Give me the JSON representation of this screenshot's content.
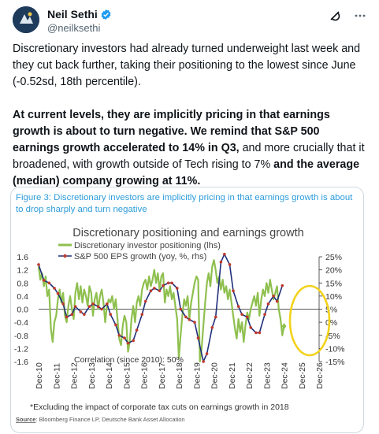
{
  "author": {
    "display_name": "Neil Sethi",
    "handle": "@neilksethi",
    "avatar_icon": "avatar-logo-icon",
    "verified_icon": "verified-badge-icon",
    "verified_color": "#1d9bf0"
  },
  "actions": {
    "grok_icon": "grok-icon",
    "more_icon": "more-dots-icon"
  },
  "tweet": {
    "para1": "Discretionary investors had already turned underweight last week and they cut back further, taking their positioning to the lowest since June (-0.52sd, 18th percentile).",
    "para2_seg1": "At current levels, they are implicitly pricing in that earnings growth is about to turn negative. We remind that S&P 500 earnings growth accelerated to 14% in Q3,",
    "para2_seg2": " and more crucially that it broadened, with growth outside of Tech rising to 7%",
    "para2_seg3": " and the average (median) company growing at 11%."
  },
  "figure": {
    "caption": "Figure 3: Discretionary investors are implicitly pricing in that earnings growth is about to drop sharply and turn negative",
    "footnote": "*Excluding the impact of corporate tax cuts on earnings growth in 2018",
    "source_label": "Source",
    "source_text": ": Bloomberg Finance LP, Deutsche Bank Asset Allocation",
    "correlation": "Correlation (since 2010): 50%",
    "highlight_color": "#f2d21b"
  },
  "chart_data": {
    "type": "line",
    "title": "Discretionary positioning and earnings growth",
    "x_tick_labels": [
      "Dec-10",
      "Dec-11",
      "Dec-12",
      "Dec-13",
      "Dec-14",
      "Dec-15",
      "Dec-16",
      "Dec-17",
      "Dec-18",
      "Dec-19",
      "Dec-20",
      "Dec-21",
      "Dec-22",
      "Dec-23",
      "Dec-24",
      "Dec-25",
      "Dec-26"
    ],
    "y_left_ticks": [
      "1.6",
      "1.2",
      "0.8",
      "0.4",
      "0.0",
      "-0.4",
      "-0.8",
      "-1.2",
      "-1.6"
    ],
    "y_right_ticks": [
      "25%",
      "20%",
      "15%",
      "10%",
      "5%",
      "0%",
      "-5%",
      "-10%",
      "-15%"
    ],
    "ylim_left": [
      -1.6,
      1.6
    ],
    "ylim_right": [
      -15,
      25
    ],
    "legend_position": "top",
    "series": [
      {
        "name": "Discretionary investor positioning (lhs)",
        "axis": "left",
        "color": "#8fc04f",
        "x": [
          2010.9,
          2011.0,
          2011.1,
          2011.2,
          2011.3,
          2011.4,
          2011.5,
          2011.6,
          2011.7,
          2011.8,
          2011.9,
          2012.0,
          2012.1,
          2012.2,
          2012.3,
          2012.4,
          2012.5,
          2012.6,
          2012.7,
          2012.8,
          2012.9,
          2013.0,
          2013.1,
          2013.2,
          2013.3,
          2013.4,
          2013.5,
          2013.6,
          2013.7,
          2013.8,
          2013.9,
          2014.0,
          2014.1,
          2014.2,
          2014.3,
          2014.4,
          2014.5,
          2014.6,
          2014.7,
          2014.8,
          2014.9,
          2015.0,
          2015.1,
          2015.2,
          2015.3,
          2015.4,
          2015.5,
          2015.6,
          2015.7,
          2015.8,
          2015.9,
          2016.0,
          2016.1,
          2016.2,
          2016.3,
          2016.4,
          2016.5,
          2016.6,
          2016.7,
          2016.8,
          2016.9,
          2017.0,
          2017.1,
          2017.2,
          2017.3,
          2017.4,
          2017.5,
          2017.6,
          2017.7,
          2017.8,
          2017.9,
          2018.0,
          2018.1,
          2018.2,
          2018.3,
          2018.4,
          2018.5,
          2018.6,
          2018.7,
          2018.8,
          2018.9,
          2019.0,
          2019.1,
          2019.2,
          2019.3,
          2019.4,
          2019.5,
          2019.6,
          2019.7,
          2019.8,
          2019.9,
          2020.0,
          2020.1,
          2020.2,
          2020.3,
          2020.4,
          2020.5,
          2020.6,
          2020.7,
          2020.8,
          2020.9,
          2021.0,
          2021.1,
          2021.2,
          2021.3,
          2021.4,
          2021.5,
          2021.6,
          2021.7,
          2021.8,
          2021.9,
          2022.0,
          2022.1,
          2022.2,
          2022.3,
          2022.4,
          2022.5,
          2022.6,
          2022.7,
          2022.8,
          2022.9,
          2023.0,
          2023.1,
          2023.2,
          2023.3,
          2023.4,
          2023.5,
          2023.6,
          2023.7,
          2023.8,
          2023.9,
          2024.0,
          2024.1,
          2024.2,
          2024.3,
          2024.4,
          2024.5,
          2024.6,
          2024.7,
          2024.8,
          2024.9
        ],
        "values": [
          1.3,
          0.9,
          1.1,
          0.7,
          1.0,
          0.4,
          0.6,
          -0.6,
          -1.0,
          -0.4,
          -0.2,
          0.3,
          0.6,
          0.2,
          0.5,
          -0.2,
          -0.4,
          0.1,
          0.4,
          0.0,
          -0.3,
          0.5,
          0.8,
          0.3,
          0.7,
          0.2,
          0.6,
          0.4,
          0.1,
          0.7,
          0.5,
          -0.2,
          0.3,
          0.5,
          0.0,
          0.4,
          0.6,
          0.2,
          -0.4,
          0.1,
          0.3,
          0.2,
          0.4,
          0.0,
          0.3,
          -0.3,
          -0.9,
          -1.1,
          -0.5,
          -0.2,
          -0.4,
          -1.3,
          -1.0,
          -0.3,
          0.1,
          -0.4,
          0.2,
          0.4,
          0.1,
          0.6,
          0.8,
          0.9,
          0.6,
          1.0,
          0.7,
          0.9,
          1.2,
          0.8,
          1.1,
          0.6,
          1.0,
          1.1,
          0.2,
          0.6,
          0.4,
          0.7,
          0.3,
          0.5,
          0.1,
          -0.3,
          -1.5,
          -0.8,
          -0.2,
          0.3,
          0.1,
          0.4,
          -0.3,
          0.2,
          0.5,
          0.8,
          1.0,
          0.9,
          -1.6,
          -1.2,
          -0.5,
          0.2,
          0.8,
          1.1,
          0.7,
          1.3,
          1.5,
          1.2,
          0.8,
          1.0,
          0.6,
          0.9,
          0.5,
          0.7,
          0.3,
          0.6,
          0.2,
          -0.2,
          -0.6,
          -0.9,
          -0.3,
          -0.7,
          -0.4,
          -1.0,
          -0.5,
          -0.1,
          -0.3,
          0.0,
          0.2,
          0.4,
          0.1,
          0.5,
          -0.2,
          0.3,
          0.6,
          0.4,
          0.8,
          0.5,
          0.9,
          0.6,
          0.3,
          0.5,
          0.7,
          0.0,
          -0.3,
          -0.8,
          -0.5
        ]
      },
      {
        "name": "S&P 500 EPS growth (yoy, %, rhs)",
        "axis": "right",
        "color": "#1f2e7a",
        "marker_color": "#c0392b",
        "x": [
          2010.9,
          2011.2,
          2011.5,
          2011.8,
          2012.0,
          2012.3,
          2012.5,
          2012.8,
          2013.0,
          2013.3,
          2013.5,
          2013.8,
          2014.0,
          2014.3,
          2014.5,
          2014.8,
          2015.0,
          2015.3,
          2015.5,
          2015.8,
          2016.0,
          2016.3,
          2016.5,
          2016.8,
          2017.0,
          2017.3,
          2017.5,
          2017.8,
          2018.0,
          2018.3,
          2018.5,
          2018.8,
          2019.0,
          2019.3,
          2019.5,
          2019.8,
          2020.0,
          2020.3,
          2020.5,
          2020.8,
          2021.0,
          2021.3,
          2021.5,
          2021.8,
          2022.0,
          2022.3,
          2022.5,
          2022.8,
          2023.0,
          2023.3,
          2023.5,
          2023.8,
          2024.0,
          2024.3,
          2024.5,
          2024.8
        ],
        "values": [
          22,
          16,
          15,
          13,
          11,
          7,
          2,
          3,
          6,
          4,
          3,
          6,
          7,
          6,
          5,
          7,
          3,
          -1,
          -5,
          -6,
          -8,
          -7,
          -3,
          3,
          8,
          12,
          13,
          12,
          14,
          15,
          15,
          13,
          5,
          2,
          1,
          0,
          -6,
          -15,
          -12,
          -2,
          2,
          23,
          26,
          22,
          12,
          6,
          3,
          2,
          -2,
          -4,
          -4,
          3,
          7,
          10,
          8,
          14
        ]
      }
    ]
  }
}
